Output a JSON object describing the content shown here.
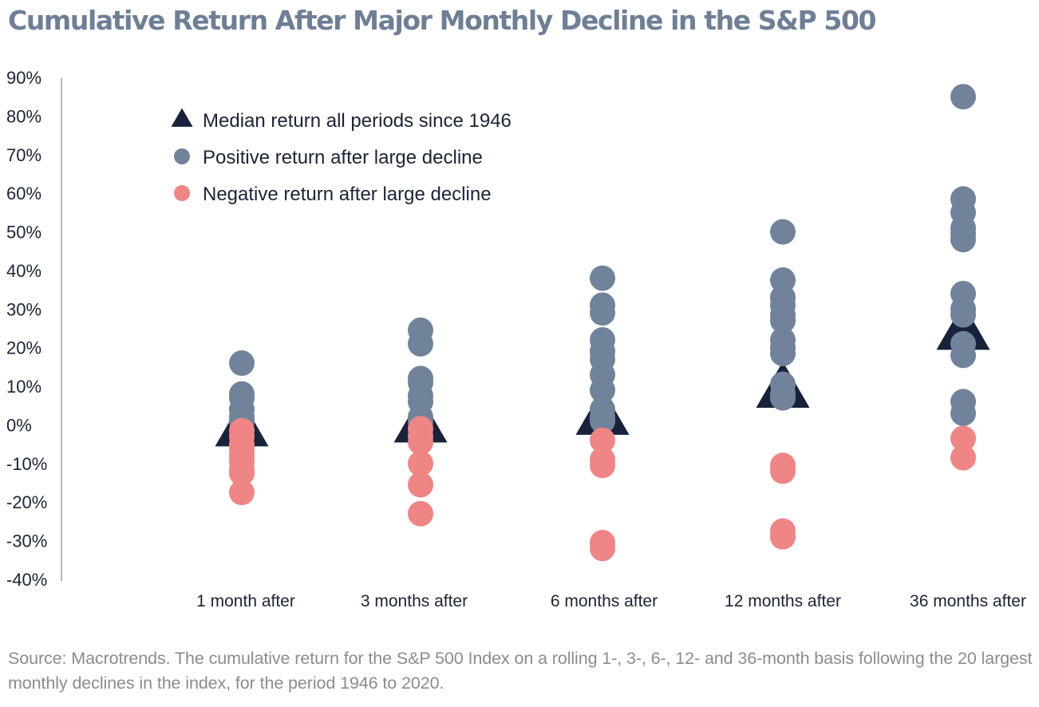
{
  "colors": {
    "title": "#6e7f95",
    "median": "#18223a",
    "positive": "#71839b",
    "negative": "#ef8585",
    "axis": "#b5b5b5",
    "text": "#1a2436",
    "source": "#8c8c8c"
  },
  "chart_data": {
    "type": "scatter",
    "title": "Cumulative Return After Major Monthly Decline in the S&P 500",
    "xlabel": "",
    "ylabel": "",
    "ylim": [
      -40,
      90
    ],
    "yticks": [
      90,
      80,
      70,
      60,
      50,
      40,
      30,
      20,
      10,
      0,
      -10,
      -20,
      -30,
      -40
    ],
    "ytick_labels": [
      "90%",
      "80%",
      "70%",
      "60%",
      "50%",
      "40%",
      "30%",
      "20%",
      "10%",
      "0%",
      "-10%",
      "-20%",
      "-30%",
      "-40%"
    ],
    "categories": [
      "1 month after",
      "3 months after",
      "6 months after",
      "12 months after",
      "36 months after"
    ],
    "grid": false,
    "legend_position": "top-left",
    "legend": [
      {
        "key": "median",
        "label": "Median return all periods since 1946",
        "marker": "triangle"
      },
      {
        "key": "positive",
        "label": "Positive return after large decline",
        "marker": "circle"
      },
      {
        "key": "negative",
        "label": "Negative return after large decline",
        "marker": "circle"
      }
    ],
    "series": [
      {
        "key": "median",
        "name": "Median return all periods since 1946",
        "values": [
          -1,
          0,
          2,
          9,
          24
        ]
      },
      {
        "key": "positive",
        "name": "Positive return after large decline",
        "values": [
          [
            16,
            8,
            7,
            4,
            2,
            1
          ],
          [
            24.5,
            21,
            12,
            11,
            7.5,
            6,
            2,
            1
          ],
          [
            38,
            31,
            29,
            22,
            19,
            17,
            13,
            9,
            4,
            2,
            1
          ],
          [
            50,
            37.5,
            33,
            31,
            28.5,
            27,
            22,
            20,
            18.5,
            10.5,
            8,
            7
          ],
          [
            85,
            58.5,
            55,
            51,
            49.5,
            48,
            34,
            30,
            28.5,
            21,
            18,
            6,
            3
          ]
        ]
      },
      {
        "key": "negative",
        "name": "Negative return after large decline",
        "values": [
          [
            -1.5,
            -3,
            -5,
            -6.5,
            -8,
            -9.5,
            -11.5,
            -12.5,
            -17.5
          ],
          [
            -1,
            -3,
            -4.5,
            -10,
            -15.5,
            -23
          ],
          [
            -4,
            -9,
            -10.5,
            -30.5,
            -32
          ],
          [
            -10.5,
            -12,
            -27.5,
            -29
          ],
          [
            -3.5,
            -8.5
          ]
        ]
      }
    ]
  },
  "source": "Source: Macrotrends. The cumulative return for the S&P 500 Index on a rolling 1-, 3-, 6-, 12- and 36-month basis following the 20 largest monthly declines in the index, for the period 1946 to 2020."
}
